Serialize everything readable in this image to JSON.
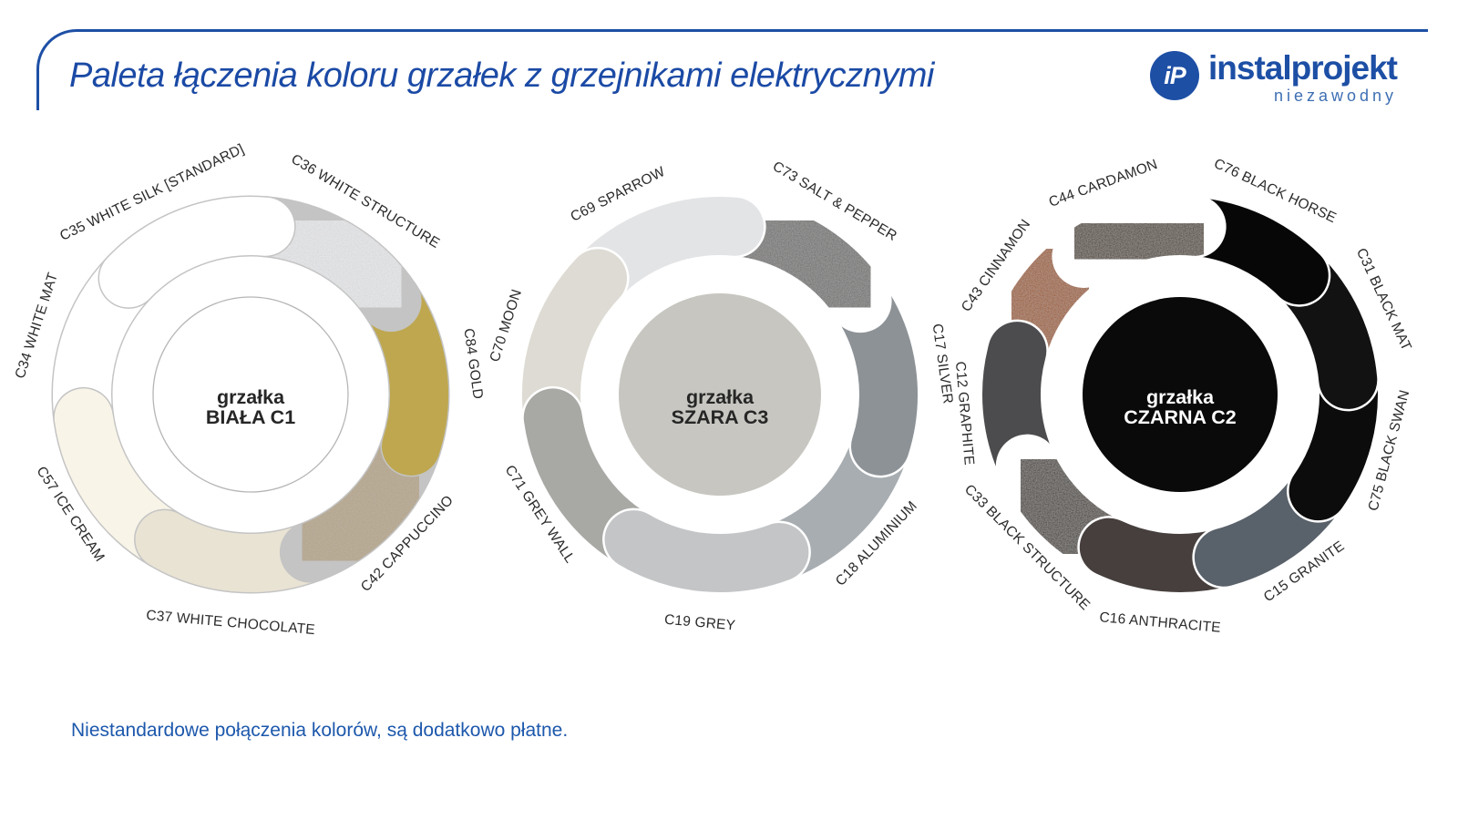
{
  "page": {
    "title": "Paleta łączenia koloru grzałek z grzejnikami elektrycznymi",
    "note": "Niestandardowe połączenia kolorów, są dodatkowo płatne.",
    "accent_color": "#1d4fa5"
  },
  "logo": {
    "monogram": "iP",
    "name": "instalprojekt",
    "tagline": "niezawodny"
  },
  "wheels": [
    {
      "id": "biala-c1",
      "center_label_line1": "grzałka",
      "center_label_line2": "BIAŁA C1",
      "center_fill": "#ffffff",
      "center_stroke": "#b5b5b5",
      "center_text_color": "#262626",
      "outline_color": "#c4c4c4",
      "outline_width": 67,
      "segments": [
        {
          "label": "C34 WHITE MAT",
          "color": "#ffffff",
          "from": 262.1,
          "to": 313.6,
          "textured": false
        },
        {
          "label": "C57 ICE CREAM",
          "color": "#f8f4e8",
          "from": 210.7,
          "to": 262.1,
          "textured": false
        },
        {
          "label": "C37 WHITE CHOCOLATE",
          "color": "#e9e3d4",
          "from": 159.3,
          "to": 210.7,
          "textured": false
        },
        {
          "label": "C42 CAPPUCCINO",
          "color": "#b2a183",
          "from": 107.9,
          "to": 159.3,
          "textured": true
        },
        {
          "label": "C84 GOLD",
          "color": "#bea74f",
          "from": 56.4,
          "to": 107.9,
          "textured": false
        },
        {
          "label": "C36 WHITE STRUCTURE",
          "color": "#e9ebef",
          "from": 5,
          "to": 56.4,
          "textured": true
        },
        {
          "label": "C35 WHITE SILK [STANDARD]",
          "color": "#ffffff",
          "from": 313.6,
          "to": 365,
          "textured": false,
          "label_angle": 334
        }
      ]
    },
    {
      "id": "szara-c3",
      "center_label_line1": "grzałka",
      "center_label_line2": "SZARA C3",
      "center_fill": "#c7c6c1",
      "center_stroke": "none",
      "center_text_color": "#262626",
      "outline_color": "#ffffff",
      "outline_width": 69,
      "segments": [
        {
          "label": "C18 ALUMINIUM",
          "color": "#a8adb1",
          "from": 107.9,
          "to": 159.3,
          "textured": false
        },
        {
          "label": "C17 SILVER",
          "color": "#8d9297",
          "from": 56.4,
          "to": 107.9,
          "textured": false
        },
        {
          "label": "C73 SALT & PEPPER",
          "color": "#6a6c6e",
          "from": 5,
          "to": 56.4,
          "textured": true
        },
        {
          "label": "C69 SPARROW",
          "color": "#e3e4e6",
          "from": 313.6,
          "to": 365,
          "textured": false,
          "label_angle": 333
        },
        {
          "label": "C70 MOON",
          "color": "#dddbd3",
          "from": 262.1,
          "to": 313.6,
          "textured": false
        },
        {
          "label": "C71 GREY WALL",
          "color": "#a8a8a5",
          "from": 210.7,
          "to": 262.1,
          "textured": false
        },
        {
          "label": "C19 GREY",
          "color": "#c3c5c7",
          "from": 159.3,
          "to": 210.7,
          "textured": false
        }
      ]
    },
    {
      "id": "czarna-c2",
      "center_label_line1": "grzałka",
      "center_label_line2": "CZARNA C2",
      "center_fill": "#0a0a0a",
      "center_stroke": "none",
      "center_text_color": "#ffffff",
      "outline_color": "#ffffff",
      "outline_width": 69,
      "segments": [
        {
          "label": "C43 CINNAMON",
          "color": "#9c551f",
          "from": 285,
          "to": 325,
          "textured": true
        },
        {
          "label": "C12 GRAPHITE",
          "color": "#4c4c4e",
          "from": 245,
          "to": 285,
          "textured": false
        },
        {
          "label": "C33 BLACK STRUCTURE",
          "color": "#343031",
          "from": 205,
          "to": 245,
          "textured": true
        },
        {
          "label": "C16 ANTHRACITE",
          "color": "#463f3d",
          "from": 165,
          "to": 205,
          "textured": false
        },
        {
          "label": "C15 GRANITE",
          "color": "#59616a",
          "from": 125,
          "to": 165,
          "textured": false
        },
        {
          "label": "C75 BLACK SWAN",
          "color": "#0c0c0c",
          "from": 85,
          "to": 125,
          "textured": false
        },
        {
          "label": "C31 BLACK MAT",
          "color": "#121212",
          "from": 45,
          "to": 85,
          "textured": false
        },
        {
          "label": "C76 BLACK HORSE",
          "color": "#070707",
          "from": 5,
          "to": 45,
          "textured": false
        },
        {
          "label": "C44 CARDAMON",
          "color": "#44392f",
          "from": 325,
          "to": 365,
          "textured": true,
          "label_angle": 340
        }
      ]
    }
  ]
}
